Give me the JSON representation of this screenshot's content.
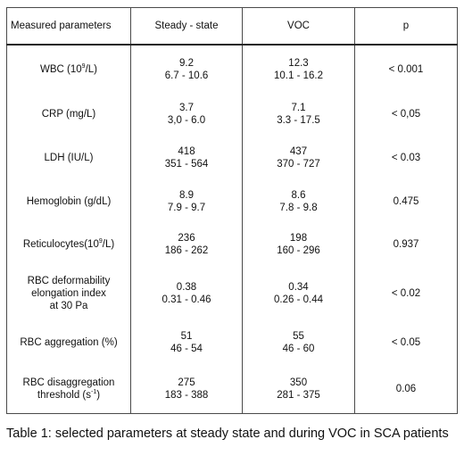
{
  "table": {
    "headers": [
      "Measured parameters",
      "Steady - state",
      "VOC",
      "p"
    ],
    "rows": [
      {
        "param": {
          "pre": "WBC (10",
          "sup": "9",
          "post": "/L)"
        },
        "steady": [
          "9.2",
          "6.7 - 10.6"
        ],
        "voc": [
          "12.3",
          "10.1 - 16.2"
        ],
        "p": "< 0.001"
      },
      {
        "param": {
          "pre": "CRP (mg/L)",
          "sup": "",
          "post": ""
        },
        "steady": [
          "3.7",
          "3,0 - 6.0"
        ],
        "voc": [
          "7.1",
          "3.3 - 17.5"
        ],
        "p": "< 0,05"
      },
      {
        "param": {
          "pre": "LDH (IU/L)",
          "sup": "",
          "post": ""
        },
        "steady": [
          "418",
          "351 - 564"
        ],
        "voc": [
          "437",
          "370 - 727"
        ],
        "p": "< 0.03"
      },
      {
        "param": {
          "pre": "Hemoglobin (g/dL)",
          "sup": "",
          "post": ""
        },
        "steady": [
          "8.9",
          "7.9 - 9.7"
        ],
        "voc": [
          "8.6",
          "7.8 - 9.8"
        ],
        "p": "0.475"
      },
      {
        "param": {
          "pre": "Reticulocytes(10",
          "sup": "9",
          "post": "/L)"
        },
        "steady": [
          "236",
          "186 - 262"
        ],
        "voc": [
          "198",
          "160 - 296"
        ],
        "p": "0.937"
      },
      {
        "param": {
          "lines": [
            "RBC deformability",
            "elongation index",
            "at 30 Pa"
          ]
        },
        "steady": [
          "0.38",
          "0.31 - 0.46"
        ],
        "voc": [
          "0.34",
          "0.26 - 0.44"
        ],
        "p": "< 0.02"
      },
      {
        "param": {
          "pre": "RBC aggregation (%)",
          "sup": "",
          "post": ""
        },
        "steady": [
          "51",
          "46 - 54"
        ],
        "voc": [
          "55",
          "46 - 60"
        ],
        "p": "< 0.05"
      },
      {
        "param": {
          "lines": [
            "RBC disaggregation"
          ],
          "pre": "threshold (s",
          "sup": "-1",
          "post": ")"
        },
        "steady": [
          "275",
          "183 - 388"
        ],
        "voc": [
          "350",
          "281 - 375"
        ],
        "p": "0.06"
      }
    ]
  },
  "caption": "Table 1: selected parameters at steady state and during VOC in SCA patients"
}
